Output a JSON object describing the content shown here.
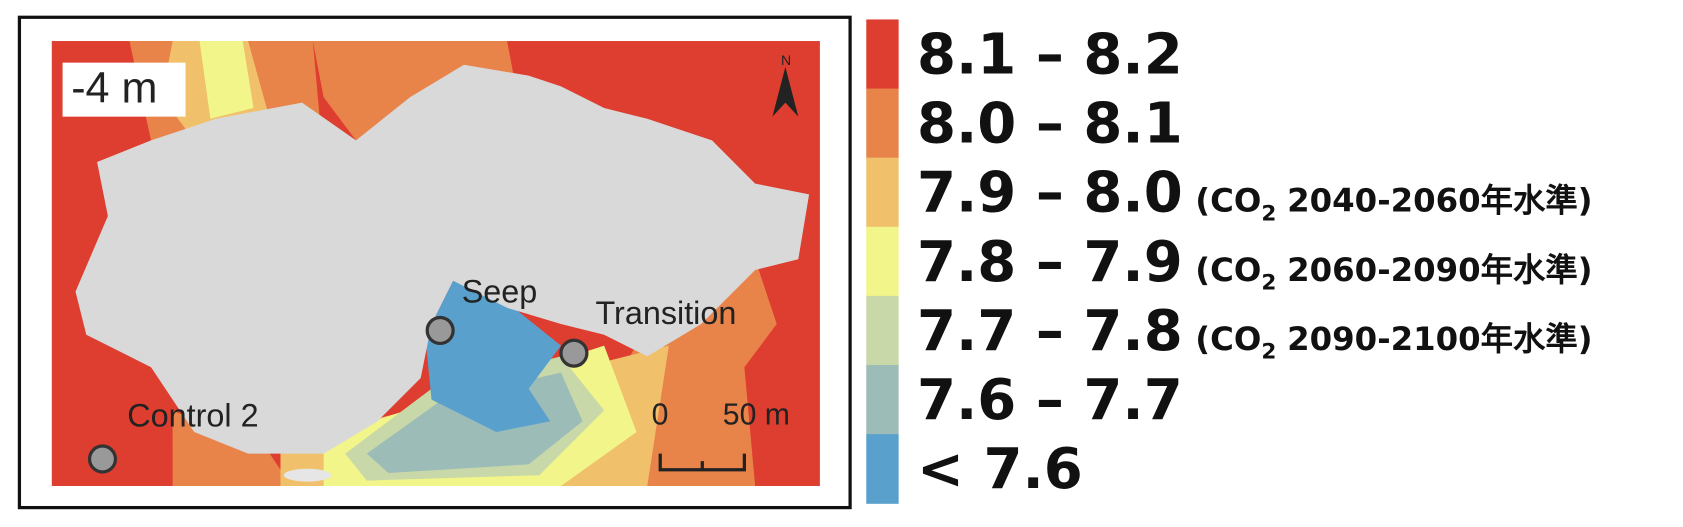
{
  "map": {
    "depth_label": "-4 m",
    "north_label": "N",
    "sites": [
      {
        "label": "Seep"
      },
      {
        "label": "Transition"
      },
      {
        "label": "Control 2"
      }
    ],
    "scale_bar": {
      "start_label": "0",
      "end_label": "50 m"
    }
  },
  "legend": {
    "items": [
      {
        "label": "8.1 – 8.2",
        "color": "#dd3e2f"
      },
      {
        "label": "8.0 – 8.1",
        "color": "#e8834a"
      },
      {
        "label": "7.9 – 8.0",
        "color": "#f0c06a",
        "note": {
          "pre": "(CO",
          "sub": "2",
          "post": "2040-2060年水準)"
        }
      },
      {
        "label": "7.8 – 7.9",
        "color": "#f2f58a",
        "note": {
          "pre": "(CO",
          "sub": "2",
          "post": "2060-2090年水準)"
        }
      },
      {
        "label": "7.7 – 7.8",
        "color": "#c8d8a8",
        "note": {
          "pre": "(CO",
          "sub": "2",
          "post": "2090-2100年水準)"
        }
      },
      {
        "label": "7.6 – 7.7",
        "color": "#9cbcb8"
      },
      {
        "label": "< 7.6",
        "color": "#5aa0cc"
      }
    ]
  }
}
